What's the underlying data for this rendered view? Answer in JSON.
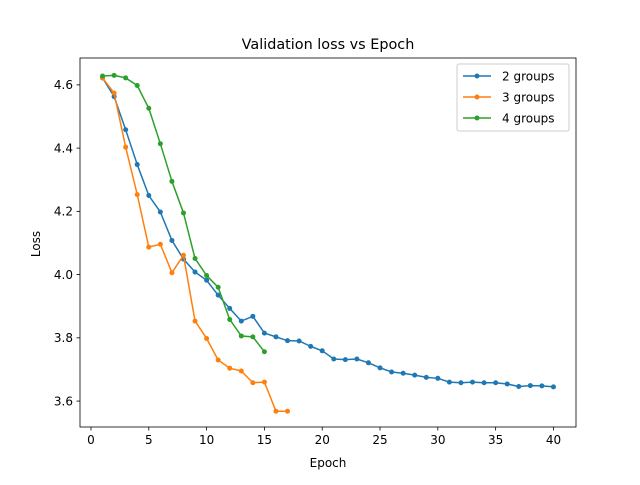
{
  "chart_data": {
    "type": "line",
    "title": "Validation loss vs Epoch",
    "xlabel": "Epoch",
    "ylabel": "Loss",
    "xlim": [
      -0.95,
      41.95
    ],
    "ylim": [
      3.518,
      4.685
    ],
    "xticks": [
      0,
      5,
      10,
      15,
      20,
      25,
      30,
      35,
      40
    ],
    "yticks": [
      3.6,
      3.8,
      4.0,
      4.2,
      4.4,
      4.6
    ],
    "ytick_labels": [
      "3.6",
      "3.8",
      "4.0",
      "4.2",
      "4.4",
      "4.6"
    ],
    "grid": false,
    "legend_position": "upper right",
    "series": [
      {
        "name": "2 groups",
        "color": "#1f77b4",
        "x": [
          1,
          2,
          3,
          4,
          5,
          6,
          7,
          8,
          9,
          10,
          11,
          12,
          13,
          14,
          15,
          16,
          17,
          18,
          19,
          20,
          21,
          22,
          23,
          24,
          25,
          26,
          27,
          28,
          29,
          30,
          31,
          32,
          33,
          34,
          35,
          36,
          37,
          38,
          39,
          40
        ],
        "values": [
          4.622,
          4.563,
          4.458,
          4.348,
          4.25,
          4.198,
          4.108,
          4.049,
          4.008,
          3.982,
          3.935,
          3.893,
          3.853,
          3.868,
          3.815,
          3.803,
          3.791,
          3.79,
          3.773,
          3.759,
          3.733,
          3.731,
          3.733,
          3.721,
          3.705,
          3.692,
          3.688,
          3.682,
          3.675,
          3.672,
          3.66,
          3.658,
          3.66,
          3.658,
          3.658,
          3.654,
          3.646,
          3.649,
          3.648,
          3.645
        ]
      },
      {
        "name": "3 groups",
        "color": "#ff7f0e",
        "x": [
          1,
          2,
          3,
          4,
          5,
          6,
          7,
          8,
          9,
          10,
          11,
          12,
          13,
          14,
          15,
          16,
          17
        ],
        "values": [
          4.622,
          4.574,
          4.403,
          4.253,
          4.087,
          4.096,
          4.006,
          4.061,
          3.853,
          3.798,
          3.73,
          3.704,
          3.695,
          3.658,
          3.66,
          3.568,
          3.568
        ]
      },
      {
        "name": "4 groups",
        "color": "#2ca02c",
        "x": [
          1,
          2,
          3,
          4,
          5,
          6,
          7,
          8,
          9,
          10,
          11,
          12,
          13,
          14,
          15
        ],
        "values": [
          4.628,
          4.63,
          4.622,
          4.598,
          4.526,
          4.414,
          4.295,
          4.195,
          4.051,
          3.997,
          3.96,
          3.858,
          3.806,
          3.803,
          3.756
        ]
      }
    ]
  }
}
